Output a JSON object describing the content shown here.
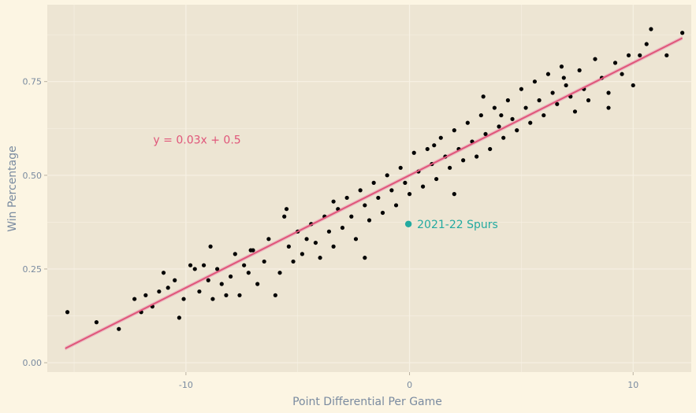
{
  "chart_data": {
    "type": "scatter",
    "title": "",
    "xlabel": "Point Differential Per Game",
    "ylabel": "Win Percentage",
    "xlim": [
      -16.2,
      12.6
    ],
    "ylim": [
      -0.025,
      0.955
    ],
    "x_ticks": [
      -10,
      0,
      10
    ],
    "x_tick_labels": [
      "-10",
      "0",
      "10"
    ],
    "y_ticks": [
      0.0,
      0.25,
      0.5,
      0.75
    ],
    "y_tick_labels": [
      "0.00",
      "0.25",
      "0.50",
      "0.75"
    ],
    "grid": true,
    "colors": {
      "page_background": "#fcf5e3",
      "panel_background": "#ede5d3",
      "grid": "#f7f1e4",
      "points": "#000000",
      "fit_line": "#e0567a",
      "fit_band": "#e9a9b9",
      "highlight": "#23aaa0",
      "equation_text": "#e0567a"
    },
    "regression": {
      "slope": 0.03,
      "intercept": 0.5,
      "x_range": [
        -15.4,
        12.2
      ],
      "label": "y = 0.03x + 0.5",
      "label_at": [
        -9.5,
        0.595
      ]
    },
    "highlight": {
      "name": "2021-22 Spurs",
      "x": -0.05,
      "y": 0.37
    },
    "series": [
      {
        "points": [
          [
            -15.3,
            0.135
          ],
          [
            -14.0,
            0.108
          ],
          [
            -12.3,
            0.17
          ],
          [
            -12.0,
            0.135
          ],
          [
            -11.8,
            0.18
          ],
          [
            -11.5,
            0.15
          ],
          [
            -11.2,
            0.19
          ],
          [
            -11.0,
            0.24
          ],
          [
            -10.8,
            0.2
          ],
          [
            -10.5,
            0.22
          ],
          [
            -10.3,
            0.12
          ],
          [
            -10.1,
            0.17
          ],
          [
            -9.8,
            0.26
          ],
          [
            -9.6,
            0.25
          ],
          [
            -9.4,
            0.19
          ],
          [
            -9.2,
            0.26
          ],
          [
            -9.0,
            0.22
          ],
          [
            -8.8,
            0.17
          ],
          [
            -8.6,
            0.25
          ],
          [
            -8.4,
            0.21
          ],
          [
            -8.2,
            0.18
          ],
          [
            -8.0,
            0.23
          ],
          [
            -7.8,
            0.29
          ],
          [
            -7.6,
            0.18
          ],
          [
            -7.4,
            0.26
          ],
          [
            -7.2,
            0.24
          ],
          [
            -7.0,
            0.3
          ],
          [
            -6.8,
            0.21
          ],
          [
            -6.5,
            0.27
          ],
          [
            -6.3,
            0.33
          ],
          [
            -6.0,
            0.18
          ],
          [
            -5.8,
            0.24
          ],
          [
            -5.6,
            0.39
          ],
          [
            -5.4,
            0.31
          ],
          [
            -5.2,
            0.27
          ],
          [
            -5.0,
            0.35
          ],
          [
            -4.8,
            0.29
          ],
          [
            -4.6,
            0.33
          ],
          [
            -4.4,
            0.37
          ],
          [
            -4.2,
            0.32
          ],
          [
            -4.0,
            0.28
          ],
          [
            -3.8,
            0.39
          ],
          [
            -3.6,
            0.35
          ],
          [
            -3.4,
            0.31
          ],
          [
            -3.2,
            0.41
          ],
          [
            -3.0,
            0.36
          ],
          [
            -2.8,
            0.44
          ],
          [
            -2.6,
            0.39
          ],
          [
            -2.4,
            0.33
          ],
          [
            -2.2,
            0.46
          ],
          [
            -2.0,
            0.42
          ],
          [
            -1.8,
            0.38
          ],
          [
            -1.6,
            0.48
          ],
          [
            -1.4,
            0.44
          ],
          [
            -1.2,
            0.4
          ],
          [
            -1.0,
            0.5
          ],
          [
            -0.8,
            0.46
          ],
          [
            -0.6,
            0.42
          ],
          [
            -0.4,
            0.52
          ],
          [
            -0.2,
            0.48
          ],
          [
            0.0,
            0.45
          ],
          [
            0.2,
            0.56
          ],
          [
            0.4,
            0.51
          ],
          [
            0.6,
            0.47
          ],
          [
            0.8,
            0.57
          ],
          [
            1.0,
            0.53
          ],
          [
            1.2,
            0.49
          ],
          [
            1.4,
            0.6
          ],
          [
            1.6,
            0.55
          ],
          [
            1.8,
            0.52
          ],
          [
            2.0,
            0.62
          ],
          [
            2.2,
            0.57
          ],
          [
            2.4,
            0.54
          ],
          [
            2.6,
            0.64
          ],
          [
            2.8,
            0.59
          ],
          [
            3.0,
            0.55
          ],
          [
            3.2,
            0.66
          ],
          [
            3.4,
            0.61
          ],
          [
            3.6,
            0.57
          ],
          [
            3.8,
            0.68
          ],
          [
            4.0,
            0.63
          ],
          [
            4.2,
            0.6
          ],
          [
            4.4,
            0.7
          ],
          [
            4.6,
            0.65
          ],
          [
            4.8,
            0.62
          ],
          [
            5.0,
            0.73
          ],
          [
            5.2,
            0.68
          ],
          [
            5.4,
            0.64
          ],
          [
            5.6,
            0.75
          ],
          [
            5.8,
            0.7
          ],
          [
            6.0,
            0.66
          ],
          [
            6.2,
            0.77
          ],
          [
            6.4,
            0.72
          ],
          [
            6.6,
            0.69
          ],
          [
            6.8,
            0.79
          ],
          [
            7.0,
            0.74
          ],
          [
            7.2,
            0.71
          ],
          [
            7.4,
            0.67
          ],
          [
            7.6,
            0.78
          ],
          [
            7.8,
            0.73
          ],
          [
            8.0,
            0.7
          ],
          [
            8.3,
            0.81
          ],
          [
            8.6,
            0.76
          ],
          [
            8.9,
            0.72
          ],
          [
            9.2,
            0.8
          ],
          [
            9.5,
            0.77
          ],
          [
            9.8,
            0.82
          ],
          [
            10.0,
            0.74
          ],
          [
            10.3,
            0.82
          ],
          [
            10.6,
            0.85
          ],
          [
            10.8,
            0.89
          ],
          [
            11.5,
            0.82
          ],
          [
            12.2,
            0.88
          ],
          [
            -13.0,
            0.09
          ],
          [
            -7.1,
            0.3
          ],
          [
            -3.4,
            0.43
          ],
          [
            1.1,
            0.58
          ],
          [
            4.1,
            0.66
          ],
          [
            6.9,
            0.76
          ],
          [
            -2.0,
            0.28
          ],
          [
            2.0,
            0.45
          ],
          [
            -5.5,
            0.41
          ],
          [
            3.3,
            0.71
          ],
          [
            -8.9,
            0.31
          ],
          [
            8.9,
            0.68
          ]
        ]
      }
    ]
  }
}
